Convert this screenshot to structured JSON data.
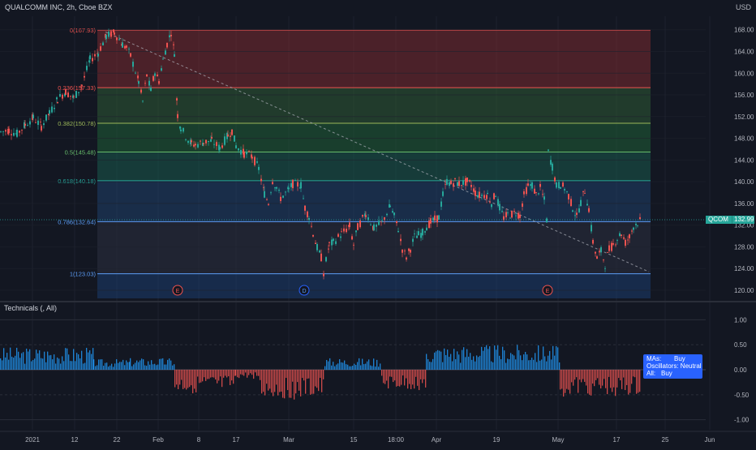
{
  "header": {
    "symbol_line": "QUALCOMM INC, 2h, Cboe BZX",
    "currency": "USD"
  },
  "colors": {
    "background": "#131722",
    "up": "#26a69a",
    "down": "#ef5350",
    "axis_text": "#b2b5be",
    "price_tag": "#26a69a",
    "oscillator_up": "#2196f3",
    "oscillator_down": "#ef5350",
    "tooltip_bg": "#2962ff"
  },
  "price_axis": {
    "ticks": [
      "168.00",
      "164.00",
      "160.00",
      "156.00",
      "152.00",
      "148.00",
      "144.00",
      "140.00",
      "136.00",
      "132.00",
      "128.00",
      "124.00",
      "120.00"
    ],
    "ylim": [
      118.5,
      170.5
    ]
  },
  "osc_axis": {
    "ticks": [
      "1.00",
      "0.50",
      "0.00",
      "-0.50",
      "-1.00"
    ],
    "ylim": [
      -1.2,
      1.2
    ]
  },
  "time_axis": {
    "ticks": [
      "2021",
      "12",
      "22",
      "Feb",
      "8",
      "17",
      "Mar",
      "15",
      "18:00",
      "Apr",
      "19",
      "May",
      "17",
      "25",
      "Jun"
    ]
  },
  "last_price": {
    "label": "QCOM",
    "value": "132.99"
  },
  "technicals": {
    "title": "Technicals (, All)",
    "tooltip": [
      {
        "label": "MAs:",
        "value": "Buy"
      },
      {
        "label": "Oscillators:",
        "value": "Neutral"
      },
      {
        "label": "All:",
        "value": "Buy"
      }
    ]
  },
  "earnings_markers": [
    "E",
    "D",
    "E"
  ],
  "chart_data": {
    "type": "candlestick",
    "instrument": "QUALCOMM INC",
    "interval": "2h",
    "exchange": "Cboe BZX",
    "fibonacci_levels": [
      {
        "ratio": "0",
        "price": 167.93,
        "label": "0(167.93)",
        "color": "#ef5350"
      },
      {
        "ratio": "0.236",
        "price": 157.33,
        "label": "0.236(157.33)",
        "color": "#ef5350"
      },
      {
        "ratio": "0.382",
        "price": 150.78,
        "label": "0.382(150.78)",
        "color": "#9cb859"
      },
      {
        "ratio": "0.5",
        "price": 145.48,
        "label": "0.5(145.48)",
        "color": "#66bb6a"
      },
      {
        "ratio": "0.618",
        "price": 140.18,
        "label": "0.618(140.18)",
        "color": "#26a69a"
      },
      {
        "ratio": "0.786",
        "price": 132.64,
        "label": "0.786(132.64)",
        "color": "#5b9cf6"
      },
      {
        "ratio": "1",
        "price": 123.03,
        "label": "1(123.03)",
        "color": "#5b9cf6"
      }
    ],
    "price_path": [
      [
        0,
        149.2
      ],
      [
        10,
        149.5
      ],
      [
        20,
        148.8
      ],
      [
        30,
        150.5
      ],
      [
        40,
        151.8
      ],
      [
        50,
        150.2
      ],
      [
        60,
        152.6
      ],
      [
        70,
        155.2
      ],
      [
        80,
        156.6
      ],
      [
        90,
        155.4
      ],
      [
        100,
        157.8
      ],
      [
        110,
        162.5
      ],
      [
        120,
        163.8
      ],
      [
        130,
        166.8
      ],
      [
        140,
        167.5
      ],
      [
        150,
        165.3
      ],
      [
        155,
        164.7
      ],
      [
        160,
        163.2
      ],
      [
        170,
        158.4
      ],
      [
        175,
        154.8
      ],
      [
        180,
        159.6
      ],
      [
        185,
        156.8
      ],
      [
        190,
        160.2
      ],
      [
        195,
        158.6
      ],
      [
        200,
        162.4
      ],
      [
        205,
        165.4
      ],
      [
        210,
        167.6
      ],
      [
        214,
        163.8
      ],
      [
        218,
        152.3
      ],
      [
        222,
        150.0
      ],
      [
        228,
        148.4
      ],
      [
        235,
        147.0
      ],
      [
        240,
        146.8
      ],
      [
        250,
        147.3
      ],
      [
        260,
        147.5
      ],
      [
        270,
        146.2
      ],
      [
        280,
        148.5
      ],
      [
        285,
        149.4
      ],
      [
        290,
        146.6
      ],
      [
        300,
        145.2
      ],
      [
        310,
        144.7
      ],
      [
        318,
        142.4
      ],
      [
        325,
        137.8
      ],
      [
        330,
        136.1
      ],
      [
        335,
        140.2
      ],
      [
        340,
        139.0
      ],
      [
        345,
        137.0
      ],
      [
        355,
        138.5
      ],
      [
        360,
        139.6
      ],
      [
        370,
        139.4
      ],
      [
        375,
        135.2
      ],
      [
        380,
        133.6
      ],
      [
        385,
        130.5
      ],
      [
        390,
        127.8
      ],
      [
        395,
        126.0
      ],
      [
        398,
        123.2
      ],
      [
        405,
        128.4
      ],
      [
        410,
        128.8
      ],
      [
        420,
        130.4
      ],
      [
        430,
        131.8
      ],
      [
        435,
        128.4
      ],
      [
        440,
        131.6
      ],
      [
        450,
        134.2
      ],
      [
        460,
        131.4
      ],
      [
        470,
        132.5
      ],
      [
        480,
        135.5
      ],
      [
        485,
        133.6
      ],
      [
        490,
        131.3
      ],
      [
        495,
        127.6
      ],
      [
        500,
        126.1
      ],
      [
        505,
        127.7
      ],
      [
        510,
        129.8
      ],
      [
        515,
        130.2
      ],
      [
        520,
        130.6
      ],
      [
        525,
        131.8
      ],
      [
        530,
        132.5
      ],
      [
        535,
        133.0
      ],
      [
        540,
        133.4
      ],
      [
        545,
        137.6
      ],
      [
        550,
        140.1
      ],
      [
        555,
        139.6
      ],
      [
        560,
        140.0
      ],
      [
        565,
        139.6
      ],
      [
        570,
        139.8
      ],
      [
        575,
        140.0
      ],
      [
        580,
        139.4
      ],
      [
        585,
        138.0
      ],
      [
        590,
        137.5
      ],
      [
        600,
        137.6
      ],
      [
        605,
        136.1
      ],
      [
        610,
        137.8
      ],
      [
        615,
        135.2
      ],
      [
        620,
        133.4
      ],
      [
        625,
        133.9
      ],
      [
        630,
        134.0
      ],
      [
        635,
        134.3
      ],
      [
        640,
        133.8
      ],
      [
        645,
        137.5
      ],
      [
        650,
        139.2
      ],
      [
        655,
        139.4
      ],
      [
        660,
        137.6
      ],
      [
        665,
        138.8
      ],
      [
        670,
        136.6
      ],
      [
        673,
        133.0
      ],
      [
        675,
        145.4
      ],
      [
        680,
        142.8
      ],
      [
        685,
        139.2
      ],
      [
        690,
        139.5
      ],
      [
        695,
        138.8
      ],
      [
        700,
        137.4
      ],
      [
        705,
        135.2
      ],
      [
        710,
        133.5
      ],
      [
        715,
        136.2
      ],
      [
        720,
        138.4
      ],
      [
        725,
        135.0
      ],
      [
        730,
        128.9
      ],
      [
        735,
        125.9
      ],
      [
        740,
        127.2
      ],
      [
        745,
        124.8
      ],
      [
        750,
        127.5
      ],
      [
        755,
        128.4
      ],
      [
        760,
        129.6
      ],
      [
        765,
        130.5
      ],
      [
        770,
        128.8
      ],
      [
        775,
        129.8
      ],
      [
        780,
        131.8
      ],
      [
        785,
        132.5
      ],
      [
        790,
        133.0
      ]
    ],
    "trend_lines": [
      {
        "from": [
          130,
          167.6
        ],
        "to": [
          800,
          123.4
        ]
      }
    ],
    "oscillator": {
      "name": "Technicals",
      "ylim": [
        -1.2,
        1.2
      ],
      "segments": [
        {
          "from": 0,
          "to": 115,
          "sign": 1,
          "level": 0.38
        },
        {
          "from": 115,
          "to": 160,
          "sign": 1,
          "level": 0.18
        },
        {
          "from": 160,
          "to": 215,
          "sign": 1,
          "level": 0.2
        },
        {
          "from": 215,
          "to": 290,
          "sign": -1,
          "level": 0.4
        },
        {
          "from": 290,
          "to": 320,
          "sign": -1,
          "level": 0.15
        },
        {
          "from": 320,
          "to": 400,
          "sign": -1,
          "level": 0.5
        },
        {
          "from": 400,
          "to": 470,
          "sign": 1,
          "level": 0.2
        },
        {
          "from": 470,
          "to": 525,
          "sign": -1,
          "level": 0.35
        },
        {
          "from": 525,
          "to": 690,
          "sign": 1,
          "level": 0.42
        },
        {
          "from": 690,
          "to": 790,
          "sign": -1,
          "level": 0.45
        }
      ]
    }
  }
}
